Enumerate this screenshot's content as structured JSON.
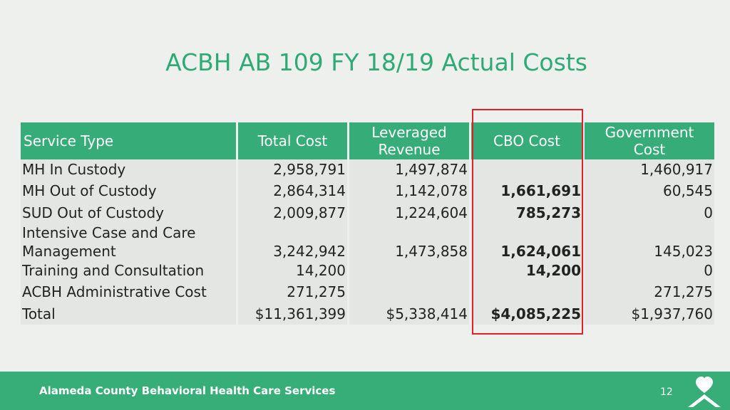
{
  "slide": {
    "title": "ACBH AB 109 FY 18/19 Actual Costs",
    "footer": "Alameda County Behavioral Health Care Services",
    "page_number": "12",
    "colors": {
      "accent": "#36ad78",
      "highlight": "#e12127",
      "background": "#eef0ee"
    }
  },
  "table": {
    "headers": {
      "service_type": "Service Type",
      "total_cost": "Total Cost",
      "leveraged_revenue_1": "Leveraged",
      "leveraged_revenue_2": "Revenue",
      "cbo_cost": "CBO Cost",
      "government_cost_1": "Government",
      "government_cost_2": "Cost"
    },
    "rows": [
      {
        "service": "MH In Custody",
        "total": "2,958,791",
        "leveraged": "1,497,874",
        "cbo": "",
        "government": "1,460,917"
      },
      {
        "service": "MH Out of Custody",
        "total": "2,864,314",
        "leveraged": "1,142,078",
        "cbo": "1,661,691",
        "government": "60,545"
      },
      {
        "service": "SUD Out of Custody",
        "total": "2,009,877",
        "leveraged": "1,224,604",
        "cbo": "785,273",
        "government": "0"
      },
      {
        "service_line1": "Intensive Case and Care",
        "service_line2": "Management",
        "total": "3,242,942",
        "leveraged": "1,473,858",
        "cbo": "1,624,061",
        "government": "145,023"
      },
      {
        "service": "Training and Consultation",
        "total": "14,200",
        "leveraged": "",
        "cbo": "14,200",
        "government": "0"
      },
      {
        "service": "ACBH Administrative Cost",
        "total": "271,275",
        "leveraged": "",
        "cbo": "",
        "government": "271,275"
      },
      {
        "service": "Total",
        "total": "$11,361,399",
        "leveraged": "$5,338,414",
        "cbo": "$4,085,225",
        "government": "$1,937,760"
      }
    ]
  }
}
